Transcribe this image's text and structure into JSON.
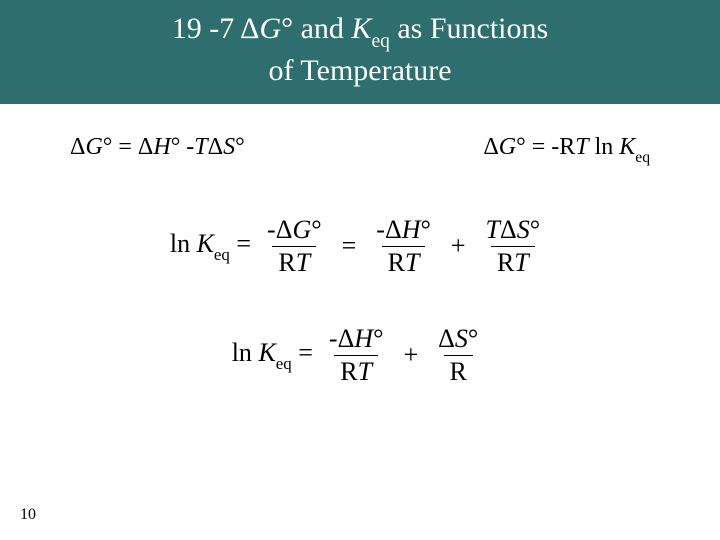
{
  "colors": {
    "title_bg": "#2f6e6e",
    "title_fg": "#ffffff",
    "body_bg": "#ffffff",
    "text": "#000000"
  },
  "title": {
    "section": "19 -7",
    "line1_before": "Δ",
    "line1_after": "G°",
    "line1_and": " and ",
    "line1_K": "K",
    "line1_eq": "eq",
    "line1_tail": " as Functions",
    "line2": "of Temperature"
  },
  "equations": {
    "topLeft": "ΔG° = ΔH° -TΔS°",
    "topRight_pre": "ΔG° = -RT ln ",
    "topRight_K": "K",
    "topRight_eq": "eq",
    "lnK_pre": "ln ",
    "lnK_K": "K",
    "lnK_eq": "eq",
    "lnK_assign": " =",
    "equals": "=",
    "plus": "+",
    "frac1_num": "-ΔG°",
    "frac1_den": "RT",
    "frac2_num": "-ΔH°",
    "frac2_den": "RT",
    "frac3_num_T": "T",
    "frac3_num_rest": "ΔS°",
    "frac3_den": "RT",
    "eq3_frac1_num": "-ΔH°",
    "eq3_frac1_den": "RT",
    "eq3_frac2_num": "ΔS°",
    "eq3_frac2_den": "R"
  },
  "pageNumber": "10",
  "typography": {
    "title_fontsize": 30,
    "body_fontsize": 24,
    "eq_fontsize": 26
  }
}
